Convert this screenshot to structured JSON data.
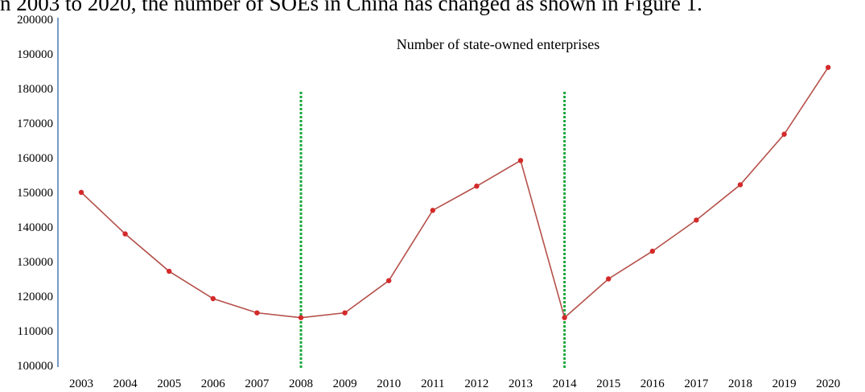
{
  "context_text": "n 2003 to 2020, the number of SOEs in China has changed as shown in Figure 1.",
  "chart_data": {
    "type": "line",
    "title": "Number of state-owned enterprises",
    "xlabel": "",
    "ylabel": "",
    "categories": [
      "2003",
      "2004",
      "2005",
      "2006",
      "2007",
      "2008",
      "2009",
      "2010",
      "2011",
      "2012",
      "2013",
      "2014",
      "2015",
      "2016",
      "2017",
      "2018",
      "2019",
      "2020"
    ],
    "series": [
      {
        "values": [
          150000,
          138000,
          127200,
          119300,
          115200,
          113800,
          115200,
          124500,
          144800,
          151800,
          159200,
          113800,
          125000,
          133000,
          142000,
          152200,
          166800,
          186100
        ]
      }
    ],
    "ylim": [
      100000,
      200000
    ],
    "yticks": [
      100000,
      110000,
      120000,
      130000,
      140000,
      150000,
      160000,
      170000,
      180000,
      190000,
      200000
    ],
    "grid": false,
    "legend": "none",
    "vertical_markers": [
      "2008",
      "2014"
    ],
    "colors": {
      "line": "#b5504a",
      "marker": "#d42a2a",
      "vertical_marker": "#1aa83c",
      "axis": "#4a78b4"
    }
  }
}
